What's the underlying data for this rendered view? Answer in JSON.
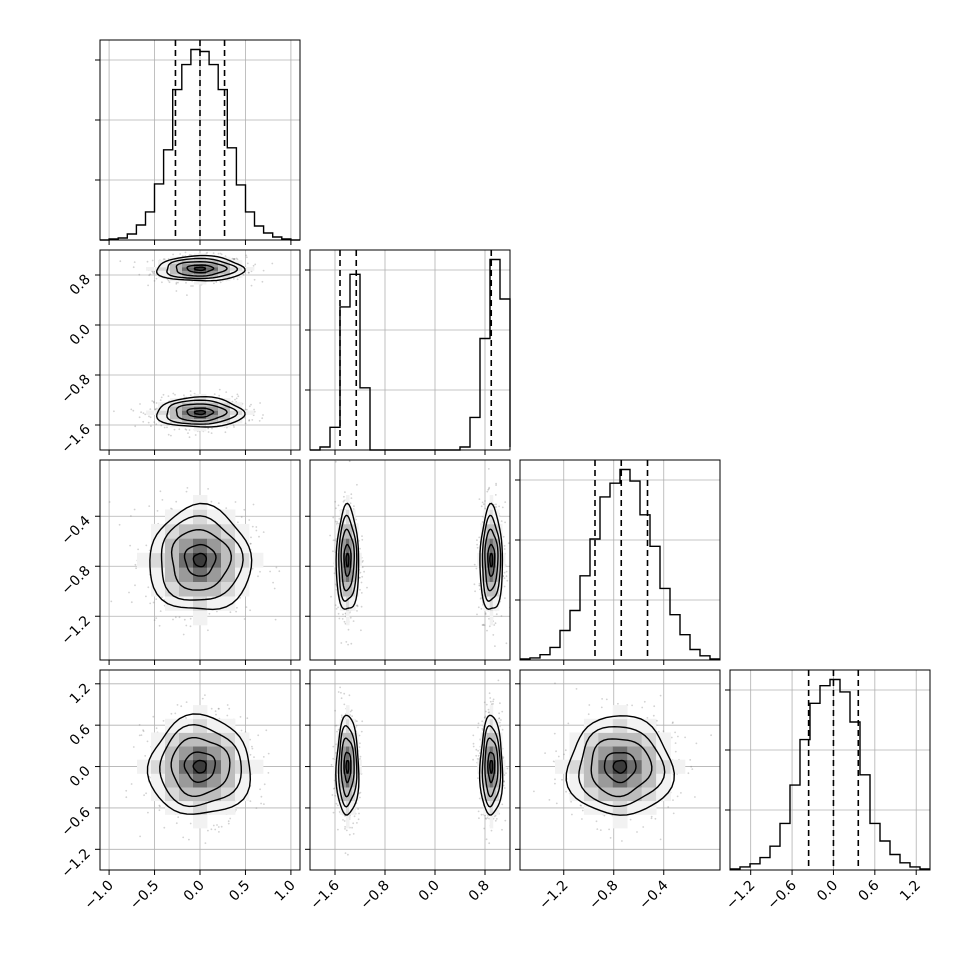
{
  "chart_data": {
    "type": "corner",
    "grid": true,
    "colors": {
      "line": "#000000",
      "grid": "#b0b0b0",
      "points": "#7f7f7f",
      "density": [
        "#f2f2f2",
        "#d9d9d9",
        "#bdbdbd",
        "#9a9a9a",
        "#6e6e6e",
        "#3c3c3c"
      ]
    },
    "params": [
      {
        "range": [
          -1.1,
          1.1
        ],
        "ticks": [
          -1.0,
          -0.5,
          0.0,
          0.5,
          1.0
        ],
        "tick_labels": [
          "−1.0",
          "−0.5",
          "0.0",
          "0.5",
          "1.0"
        ],
        "quantiles": [
          -0.27,
          0.0,
          0.27
        ]
      },
      {
        "range": [
          -2.0,
          1.2
        ],
        "ticks": [
          -1.6,
          -0.8,
          0.0,
          0.8
        ],
        "tick_labels": [
          "−1.6",
          "−0.8",
          "0.0",
          "0.8"
        ],
        "quantiles": [
          -1.52,
          -1.26,
          0.9
        ]
      },
      {
        "range": [
          -1.55,
          0.05
        ],
        "ticks": [
          -1.2,
          -0.8,
          -0.4
        ],
        "tick_labels": [
          "−1.2",
          "−0.8",
          "−0.4"
        ],
        "quantiles": [
          -0.95,
          -0.74,
          -0.53
        ]
      },
      {
        "range": [
          -1.5,
          1.4
        ],
        "ticks": [
          -1.2,
          -0.6,
          0.0,
          0.6,
          1.2
        ],
        "tick_labels": [
          "−1.2",
          "−0.6",
          "0.0",
          "0.6",
          "1.2"
        ],
        "quantiles": [
          -0.36,
          0.0,
          0.36
        ]
      }
    ],
    "histograms": [
      {
        "bin_edges": [
          -1.1,
          -1.0,
          -0.9,
          -0.8,
          -0.7,
          -0.6,
          -0.5,
          -0.4,
          -0.3,
          -0.2,
          -0.1,
          0.0,
          0.1,
          0.2,
          0.3,
          0.4,
          0.5,
          0.6,
          0.7,
          0.8,
          0.9,
          1.0,
          1.1
        ],
        "counts": [
          0,
          1,
          2,
          6,
          15,
          28,
          56,
          90,
          150,
          175,
          190,
          188,
          175,
          150,
          92,
          55,
          28,
          14,
          7,
          3,
          1,
          0
        ]
      },
      {
        "bin_edges": [
          -2.0,
          -1.84,
          -1.68,
          -1.52,
          -1.36,
          -1.2,
          -1.04,
          -0.88,
          -0.72,
          -0.56,
          -0.4,
          -0.24,
          -0.08,
          0.08,
          0.24,
          0.4,
          0.56,
          0.72,
          0.88,
          1.04,
          1.2
        ],
        "counts": [
          0,
          3,
          23,
          145,
          178,
          63,
          0,
          0,
          0,
          0,
          0,
          0,
          0,
          0,
          0,
          3,
          33,
          113,
          193,
          153,
          3
        ]
      },
      {
        "bin_edges": [
          -1.55,
          -1.47,
          -1.39,
          -1.31,
          -1.23,
          -1.15,
          -1.07,
          -0.99,
          -0.91,
          -0.83,
          -0.75,
          -0.67,
          -0.59,
          -0.51,
          -0.43,
          -0.35,
          -0.27,
          -0.19,
          -0.11,
          -0.03,
          0.05
        ],
        "counts": [
          1,
          2,
          5,
          12,
          28,
          47,
          80,
          115,
          155,
          168,
          181,
          170,
          138,
          108,
          68,
          43,
          24,
          10,
          4,
          1
        ]
      },
      {
        "bin_edges": [
          -1.5,
          -1.355,
          -1.21,
          -1.065,
          -0.92,
          -0.775,
          -0.63,
          -0.485,
          -0.34,
          -0.195,
          -0.05,
          0.095,
          0.24,
          0.385,
          0.53,
          0.675,
          0.82,
          0.965,
          1.11,
          1.255,
          1.4
        ],
        "counts": [
          1,
          3,
          6,
          12,
          23,
          45,
          82,
          126,
          161,
          178,
          184,
          172,
          143,
          92,
          45,
          28,
          15,
          7,
          3,
          1
        ]
      }
    ],
    "panels_2d": [
      {
        "row": 1,
        "col": 0,
        "blobs": [
          {
            "cx": 0.0,
            "cy": 0.9,
            "sx": 0.24,
            "sy": 0.1
          },
          {
            "cx": 0.0,
            "cy": -1.4,
            "sx": 0.24,
            "sy": 0.12
          }
        ]
      },
      {
        "row": 2,
        "col": 0,
        "blobs": [
          {
            "cx": 0.0,
            "cy": -0.75,
            "sx": 0.28,
            "sy": 0.21
          }
        ]
      },
      {
        "row": 2,
        "col": 1,
        "blobs": [
          {
            "cx": -1.4,
            "cy": -0.75,
            "sx": 0.09,
            "sy": 0.21
          },
          {
            "cx": 0.9,
            "cy": -0.75,
            "sx": 0.09,
            "sy": 0.21
          }
        ]
      },
      {
        "row": 3,
        "col": 0,
        "blobs": [
          {
            "cx": 0.0,
            "cy": 0.0,
            "sx": 0.28,
            "sy": 0.36
          }
        ]
      },
      {
        "row": 3,
        "col": 1,
        "blobs": [
          {
            "cx": -1.4,
            "cy": 0.0,
            "sx": 0.09,
            "sy": 0.36
          },
          {
            "cx": 0.9,
            "cy": 0.0,
            "sx": 0.09,
            "sy": 0.36
          }
        ]
      },
      {
        "row": 3,
        "col": 2,
        "blobs": [
          {
            "cx": -0.75,
            "cy": 0.0,
            "sx": 0.21,
            "sy": 0.36
          }
        ]
      }
    ]
  }
}
